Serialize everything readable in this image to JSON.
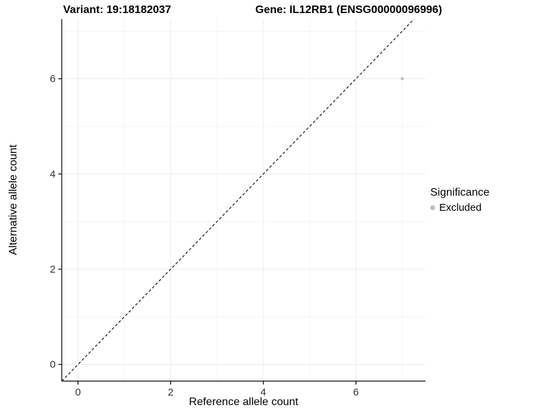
{
  "header": {
    "title_left": "Variant: 19:18182037",
    "title_right": "Gene: IL12RB1 (ENSG00000096996)"
  },
  "chart_data": {
    "type": "scatter",
    "xlabel": "Reference allele count",
    "ylabel": "Alternative allele count",
    "xlim": [
      -0.35,
      7.5
    ],
    "ylim": [
      -0.35,
      7.25
    ],
    "x_ticks": [
      0,
      2,
      4,
      6
    ],
    "y_ticks": [
      0,
      2,
      4,
      6
    ],
    "x_minor_ticks": [
      1,
      3,
      5,
      7
    ],
    "y_minor_ticks": [
      1,
      3,
      5,
      7
    ],
    "grid": true,
    "identity_line": {
      "slope": 1,
      "intercept": 0,
      "style": "dashed",
      "color": "#000000"
    },
    "points": [
      {
        "x": 7,
        "y": 6,
        "series": "Excluded"
      }
    ],
    "legend": {
      "title": "Significance",
      "position": "right",
      "entries": [
        {
          "label": "Excluded",
          "color": "#bdbdbd"
        }
      ]
    },
    "colors": {
      "axis_line": "#000000",
      "tick_label": "#333333",
      "grid_major": "#ececec",
      "grid_minor": "#f5f5f5",
      "panel_background": "#ffffff"
    }
  }
}
